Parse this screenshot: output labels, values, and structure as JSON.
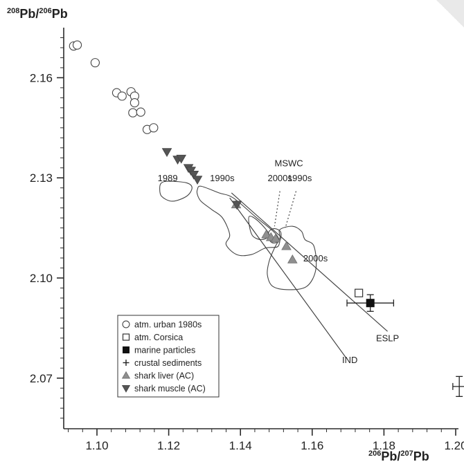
{
  "chart_data": {
    "type": "scatter",
    "title": "",
    "ylabel": {
      "sup1": "208",
      "mid": "Pb/",
      "sup2": "206",
      "tail": "Pb"
    },
    "xlabel": {
      "sup1": "206",
      "mid": "Pb/",
      "sup2": "207",
      "tail": "Pb"
    },
    "xlim": [
      1.09,
      1.21
    ],
    "ylim": [
      2.055,
      2.175
    ],
    "xticks": [
      1.1,
      1.12,
      1.14,
      1.16,
      1.18,
      1.2
    ],
    "xtick_labels": [
      "1.10",
      "1.12",
      "1.14",
      "1.16",
      "1.18",
      "1.20"
    ],
    "yticks": [
      2.07,
      2.1,
      2.13,
      2.16
    ],
    "ytick_labels": [
      "2.07",
      "2.10",
      "2.13",
      "2.16"
    ],
    "series": [
      {
        "name": "atm. urban 1980s",
        "marker": "circle-open",
        "points": [
          [
            1.0935,
            2.1695
          ],
          [
            1.0945,
            2.1698
          ],
          [
            1.0995,
            2.1645
          ],
          [
            1.1055,
            2.1555
          ],
          [
            1.107,
            2.1545
          ],
          [
            1.1095,
            2.1558
          ],
          [
            1.1105,
            2.1545
          ],
          [
            1.1105,
            2.1525
          ],
          [
            1.11,
            2.1495
          ],
          [
            1.1122,
            2.1497
          ],
          [
            1.114,
            2.1445
          ],
          [
            1.1158,
            2.145
          ]
        ]
      },
      {
        "name": "atm. Corsica",
        "marker": "square-open",
        "points": [
          [
            1.173,
            2.0955
          ]
        ]
      },
      {
        "name": "marine particles",
        "marker": "square-filled",
        "points": [
          [
            1.1762,
            2.0925
          ]
        ]
      },
      {
        "name": "crustal sediments",
        "marker": "plus",
        "points": []
      },
      {
        "name": "shark liver (AC)",
        "marker": "triangle-up",
        "points": [
          [
            1.1388,
            2.122
          ],
          [
            1.1472,
            2.113
          ],
          [
            1.1485,
            2.1122
          ],
          [
            1.1498,
            2.1118
          ],
          [
            1.1528,
            2.1095
          ],
          [
            1.1545,
            2.1055
          ]
        ]
      },
      {
        "name": "shark muscle (AC)",
        "marker": "triangle-down",
        "points": [
          [
            1.1195,
            2.1378
          ],
          [
            1.1225,
            2.1355
          ],
          [
            1.1235,
            2.1358
          ],
          [
            1.1255,
            2.133
          ],
          [
            1.1262,
            2.1322
          ],
          [
            1.127,
            2.131
          ],
          [
            1.128,
            2.1295
          ],
          [
            1.139,
            2.122
          ]
        ]
      }
    ],
    "error_bars": [
      {
        "x": 1.1762,
        "y": 2.0925,
        "xerr": 0.0065,
        "yerr": 0.0025
      },
      {
        "x": 1.201,
        "y": 2.0675,
        "xerr": 0.0018,
        "yerr": 0.003
      }
    ],
    "trend_lines": [
      {
        "name": "IND",
        "points": [
          [
            1.137,
            2.124
          ],
          [
            1.1695,
            2.076
          ]
        ]
      },
      {
        "name": "ESLP",
        "points": [
          [
            1.1375,
            2.1255
          ],
          [
            1.181,
            2.084
          ]
        ]
      }
    ],
    "fields": [
      {
        "name": "1989",
        "points": [
          [
            1.118,
            2.1285
          ],
          [
            1.12,
            2.129
          ],
          [
            1.125,
            2.1285
          ],
          [
            1.1265,
            2.127
          ],
          [
            1.125,
            2.1245
          ],
          [
            1.121,
            2.123
          ],
          [
            1.118,
            2.1245
          ],
          [
            1.1175,
            2.127
          ]
        ]
      },
      {
        "name": "1990s",
        "points": [
          [
            1.128,
            2.1265
          ],
          [
            1.129,
            2.1275
          ],
          [
            1.134,
            2.1255
          ],
          [
            1.138,
            2.124
          ],
          [
            1.144,
            2.1185
          ],
          [
            1.15,
            2.113
          ],
          [
            1.1505,
            2.1095
          ],
          [
            1.147,
            2.109
          ],
          [
            1.143,
            2.107
          ],
          [
            1.139,
            2.107
          ],
          [
            1.136,
            2.11
          ],
          [
            1.137,
            2.113
          ],
          [
            1.135,
            2.118
          ],
          [
            1.132,
            2.1205
          ],
          [
            1.129,
            2.123
          ],
          [
            1.128,
            2.125
          ]
        ]
      },
      {
        "name": "MSWC 1990s",
        "points": [
          [
            1.1425,
            2.1185
          ],
          [
            1.145,
            2.117
          ],
          [
            1.148,
            2.113
          ],
          [
            1.146,
            2.1115
          ],
          [
            1.1435,
            2.1125
          ],
          [
            1.1425,
            2.1155
          ]
        ]
      },
      {
        "name": "MSWC 2000s",
        "points": [
          [
            1.148,
            2.114
          ],
          [
            1.1495,
            2.1148
          ],
          [
            1.1512,
            2.1138
          ],
          [
            1.151,
            2.1112
          ],
          [
            1.149,
            2.1105
          ],
          [
            1.1478,
            2.112
          ]
        ]
      },
      {
        "name": "2000s",
        "points": [
          [
            1.151,
            2.1145
          ],
          [
            1.1545,
            2.1155
          ],
          [
            1.157,
            2.114
          ],
          [
            1.158,
            2.1115
          ],
          [
            1.1605,
            2.1095
          ],
          [
            1.161,
            2.1025
          ],
          [
            1.1585,
            2.0975
          ],
          [
            1.1535,
            2.0965
          ],
          [
            1.149,
            2.0975
          ],
          [
            1.1475,
            2.101
          ],
          [
            1.148,
            2.105
          ],
          [
            1.1495,
            2.109
          ],
          [
            1.151,
            2.112
          ]
        ]
      }
    ],
    "leaders": [
      {
        "from": [
          1.1555,
          2.126
        ],
        "to": [
          1.1525,
          2.115
        ]
      },
      {
        "from": [
          1.151,
          2.126
        ],
        "to": [
          1.1495,
          2.1155
        ]
      }
    ],
    "annotations": [
      {
        "text": "1989",
        "x": 1.1225,
        "y": 2.129,
        "anchor": "end"
      },
      {
        "text": "1990s",
        "x": 1.1315,
        "y": 2.129,
        "anchor": "start"
      },
      {
        "text": "MSWC",
        "x": 1.1535,
        "y": 2.1335,
        "anchor": "middle"
      },
      {
        "text": "2000s",
        "x": 1.151,
        "y": 2.129,
        "anchor": "middle"
      },
      {
        "text": "1990s",
        "x": 1.1565,
        "y": 2.129,
        "anchor": "middle"
      },
      {
        "text": "2000s",
        "x": 1.1575,
        "y": 2.105,
        "anchor": "start"
      },
      {
        "text": "ESLP",
        "x": 1.181,
        "y": 2.081,
        "anchor": "middle"
      },
      {
        "text": "IND",
        "x": 1.1705,
        "y": 2.0745,
        "anchor": "middle"
      }
    ],
    "legend": {
      "placement": "bottom-left",
      "entries": [
        {
          "label": "atm. urban 1980s",
          "marker": "circle-open"
        },
        {
          "label": "atm. Corsica",
          "marker": "square-open"
        },
        {
          "label": "marine particles",
          "marker": "square-filled"
        },
        {
          "label": "crustal sediments",
          "marker": "plus"
        },
        {
          "label": "shark liver (AC)",
          "marker": "triangle-up"
        },
        {
          "label": "shark muscle (AC)",
          "marker": "triangle-down"
        }
      ]
    },
    "grid": false
  }
}
